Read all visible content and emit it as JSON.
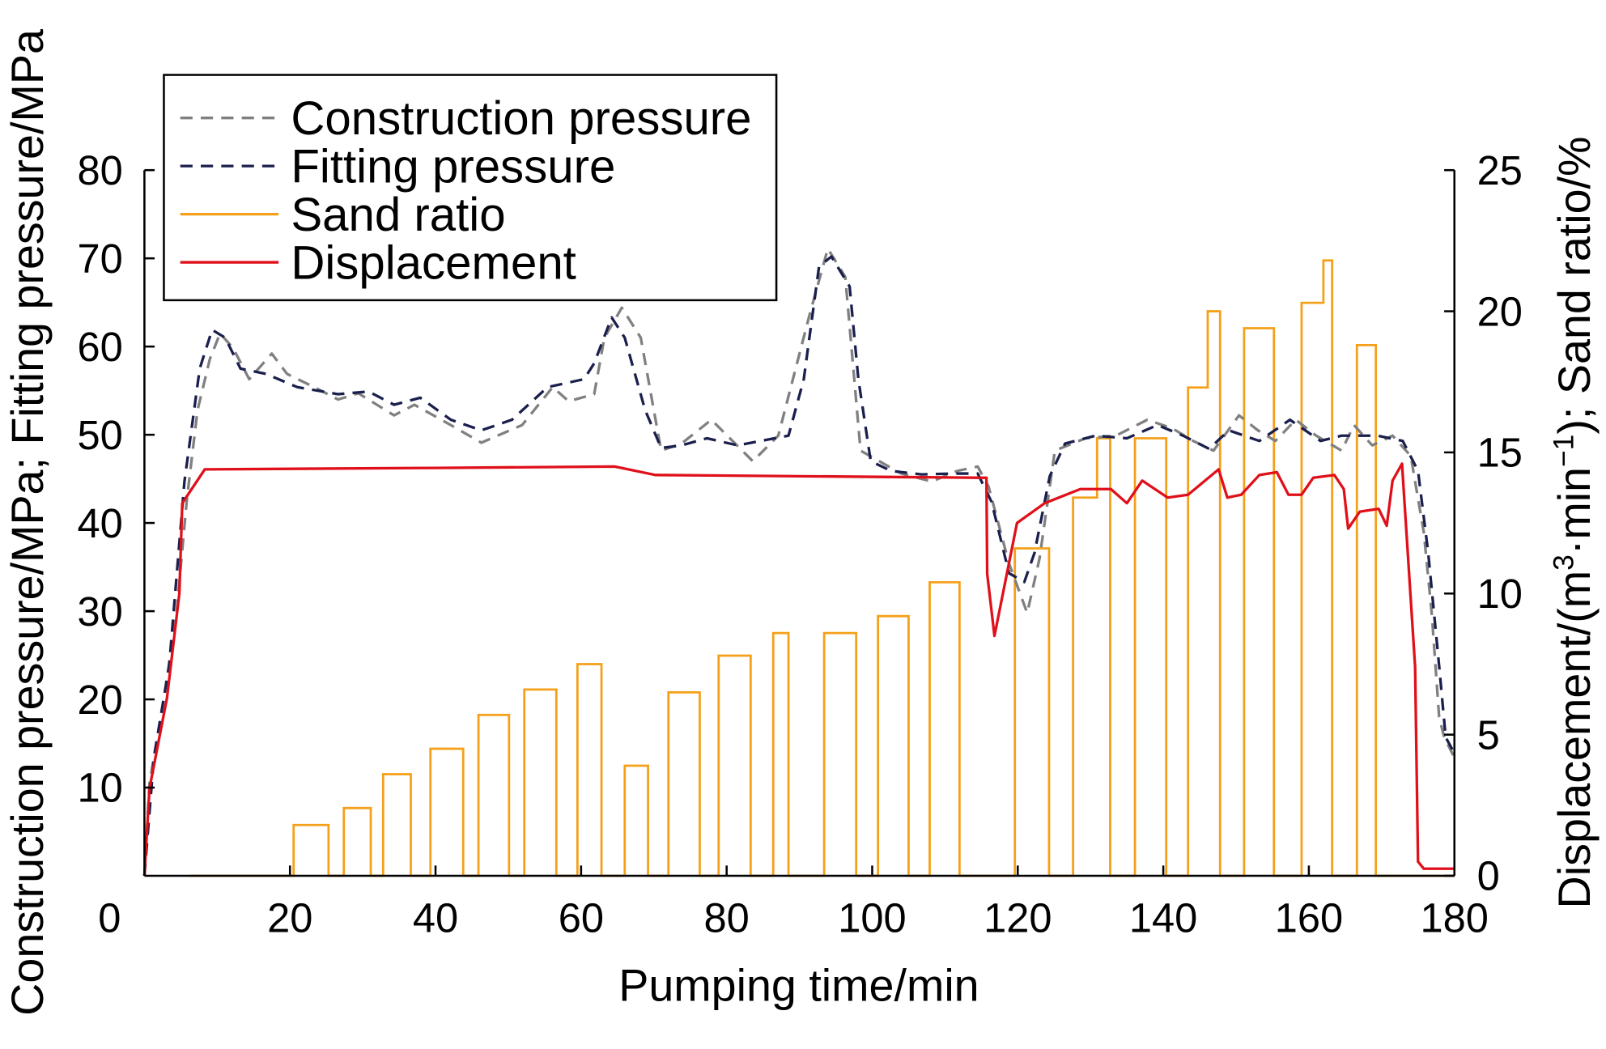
{
  "chart_data": {
    "type": "line",
    "title": "",
    "xlabel": "Pumping time/min",
    "ylabel": "Construction pressure/MPa; Fitting pressure/MPa",
    "y2label_parts": [
      "Displacement/(m",
      "3",
      "·min",
      "−1",
      "); Sand ratio/%"
    ],
    "xlim": [
      0,
      180
    ],
    "ylim": [
      0,
      80
    ],
    "y2lim": [
      0,
      25
    ],
    "x_ticks": [
      0,
      20,
      40,
      60,
      80,
      100,
      120,
      140,
      160,
      180
    ],
    "y_ticks": [
      10,
      20,
      30,
      40,
      50,
      60,
      70,
      80
    ],
    "y2_ticks": [
      0,
      5,
      10,
      15,
      20,
      25
    ],
    "grid": false,
    "legend_position": "top-left",
    "series": [
      {
        "name": "Construction pressure",
        "axis": "left",
        "color": "#808080",
        "style": "dashed",
        "points": [
          [
            0,
            0
          ],
          [
            0.7,
            10.5
          ],
          [
            2.7,
            20.3
          ],
          [
            4.4,
            29.6
          ],
          [
            5.8,
            42.4
          ],
          [
            7.3,
            52.8
          ],
          [
            9,
            58.6
          ],
          [
            10.4,
            61.5
          ],
          [
            12.2,
            59.8
          ],
          [
            14.4,
            56.3
          ],
          [
            17.5,
            59.2
          ],
          [
            19.6,
            56.9
          ],
          [
            23.8,
            55.2
          ],
          [
            26.6,
            54
          ],
          [
            29.4,
            54.7
          ],
          [
            34.3,
            52.2
          ],
          [
            37.1,
            53.4
          ],
          [
            42.1,
            51.1
          ],
          [
            46.3,
            49.1
          ],
          [
            51.9,
            51.1
          ],
          [
            56.1,
            55.4
          ],
          [
            58.3,
            53.8
          ],
          [
            61.8,
            54.6
          ],
          [
            63.2,
            61
          ],
          [
            65.6,
            64.4
          ],
          [
            68.2,
            61
          ],
          [
            71,
            48.2
          ],
          [
            73.8,
            49
          ],
          [
            77.9,
            51.7
          ],
          [
            83.6,
            47
          ],
          [
            87.1,
            49.9
          ],
          [
            91.3,
            63.3
          ],
          [
            93.9,
            71.1
          ],
          [
            96.3,
            67.9
          ],
          [
            98.4,
            48.2
          ],
          [
            104,
            45.6
          ],
          [
            108.2,
            44.7
          ],
          [
            111.7,
            45.9
          ],
          [
            114.5,
            46.4
          ],
          [
            116,
            44.1
          ],
          [
            118.8,
            35.4
          ],
          [
            121.3,
            29.8
          ],
          [
            123,
            36
          ],
          [
            125.1,
            48.2
          ],
          [
            129.3,
            49.6
          ],
          [
            133.5,
            49.9
          ],
          [
            137.8,
            51.7
          ],
          [
            141.3,
            50.7
          ],
          [
            144.1,
            49.3
          ],
          [
            146.9,
            48.2
          ],
          [
            150.4,
            52.2
          ],
          [
            153,
            50.5
          ],
          [
            155.4,
            49.3
          ],
          [
            158.2,
            51.7
          ],
          [
            161,
            49.9
          ],
          [
            164.5,
            48.2
          ],
          [
            166.2,
            51.1
          ],
          [
            168.7,
            48.8
          ],
          [
            171.5,
            49.9
          ],
          [
            174,
            47.6
          ],
          [
            175.8,
            38.9
          ],
          [
            176.9,
            29.6
          ],
          [
            177.9,
            18
          ],
          [
            178.6,
            15.7
          ],
          [
            180,
            13.4
          ]
        ]
      },
      {
        "name": "Fitting pressure",
        "axis": "left",
        "color": "#1a1f4d",
        "style": "dashed",
        "points": [
          [
            0,
            0
          ],
          [
            1.3,
            13.4
          ],
          [
            3.4,
            23.8
          ],
          [
            5.5,
            44.7
          ],
          [
            7.6,
            57.5
          ],
          [
            9.3,
            61.9
          ],
          [
            11.1,
            61
          ],
          [
            13.2,
            57.5
          ],
          [
            16.7,
            56.9
          ],
          [
            21,
            55.4
          ],
          [
            26.6,
            54.6
          ],
          [
            30.8,
            54.9
          ],
          [
            34.3,
            53.4
          ],
          [
            37.9,
            54.2
          ],
          [
            42.1,
            51.7
          ],
          [
            46.3,
            50.5
          ],
          [
            50.5,
            51.7
          ],
          [
            55.4,
            55.4
          ],
          [
            60.4,
            56.3
          ],
          [
            61.8,
            58.1
          ],
          [
            64.2,
            63.3
          ],
          [
            66,
            61
          ],
          [
            68.8,
            52.8
          ],
          [
            71,
            48.5
          ],
          [
            73.8,
            48.8
          ],
          [
            77.3,
            49.6
          ],
          [
            81.5,
            48.8
          ],
          [
            88.5,
            49.9
          ],
          [
            90.6,
            56.3
          ],
          [
            92.7,
            69.1
          ],
          [
            94.4,
            70.2
          ],
          [
            96.9,
            66.8
          ],
          [
            98.1,
            56.3
          ],
          [
            99.8,
            47
          ],
          [
            102.6,
            45.9
          ],
          [
            106.8,
            45.5
          ],
          [
            111,
            45.6
          ],
          [
            114.5,
            45.6
          ],
          [
            116.4,
            42.4
          ],
          [
            118.8,
            34.3
          ],
          [
            120.9,
            33.3
          ],
          [
            122.3,
            36.6
          ],
          [
            124.4,
            45.3
          ],
          [
            126.5,
            49
          ],
          [
            130.7,
            49.9
          ],
          [
            135,
            49.6
          ],
          [
            139.2,
            51.1
          ],
          [
            142.7,
            49.9
          ],
          [
            146.3,
            48.4
          ],
          [
            149,
            50.5
          ],
          [
            153.2,
            49.3
          ],
          [
            157.4,
            51.7
          ],
          [
            161.6,
            49.3
          ],
          [
            164.5,
            49.9
          ],
          [
            169.4,
            49.9
          ],
          [
            172.9,
            49.3
          ],
          [
            175,
            45.9
          ],
          [
            176.4,
            36.6
          ],
          [
            177.9,
            23.8
          ],
          [
            178.8,
            15.7
          ],
          [
            180,
            13.9
          ]
        ]
      },
      {
        "name": "Sand ratio",
        "axis": "right",
        "color": "#f5a01a",
        "style": "solid",
        "unit": "%",
        "bars": [
          [
            20.5,
            25.3,
            1.8
          ],
          [
            27.4,
            31.1,
            2.4
          ],
          [
            32.8,
            36.6,
            3.6
          ],
          [
            39.3,
            43.8,
            4.5
          ],
          [
            45.9,
            50.1,
            5.7
          ],
          [
            52.2,
            56.6,
            6.6
          ],
          [
            59.5,
            62.8,
            7.5
          ],
          [
            66,
            69.2,
            3.9
          ],
          [
            72,
            76.3,
            6.5
          ],
          [
            78.9,
            83.3,
            7.8
          ],
          [
            86.4,
            88.5,
            8.6
          ],
          [
            93.4,
            97.8,
            8.6
          ],
          [
            100.8,
            105,
            9.2
          ],
          [
            107.9,
            112,
            10.4
          ],
          [
            119.6,
            124.3,
            11.6
          ],
          [
            127.6,
            130.9,
            13.4
          ],
          [
            130.9,
            132.7,
            15.5
          ],
          [
            136.1,
            140.4,
            15.5
          ],
          [
            143.4,
            146.1,
            17.3
          ],
          [
            146.1,
            147.8,
            20.0
          ],
          [
            151.1,
            155.2,
            19.4
          ],
          [
            159,
            162,
            20.3
          ],
          [
            162,
            163.2,
            21.8
          ],
          [
            166.6,
            169.2,
            18.8
          ]
        ],
        "baseline_start": 6.2
      },
      {
        "name": "Displacement",
        "axis": "right",
        "color": "#e0101a",
        "style": "solid",
        "unit": "m3/min",
        "points": [
          [
            0,
            0
          ],
          [
            0.7,
            3.1
          ],
          [
            3.1,
            6.3
          ],
          [
            4.8,
            10
          ],
          [
            5.2,
            13.2
          ],
          [
            8.3,
            14.4
          ],
          [
            40,
            14.45
          ],
          [
            64.6,
            14.5
          ],
          [
            70.2,
            14.2
          ],
          [
            115.7,
            14.1
          ],
          [
            115.8,
            10.7
          ],
          [
            116.8,
            8.5
          ],
          [
            119.9,
            12.5
          ],
          [
            123.7,
            13.2
          ],
          [
            128.6,
            13.7
          ],
          [
            132.8,
            13.7
          ],
          [
            135,
            13.2
          ],
          [
            137.1,
            14
          ],
          [
            140.6,
            13.4
          ],
          [
            143.4,
            13.5
          ],
          [
            147.6,
            14.4
          ],
          [
            148.8,
            13.4
          ],
          [
            150.7,
            13.5
          ],
          [
            153.2,
            14.2
          ],
          [
            155.6,
            14.3
          ],
          [
            157.2,
            13.5
          ],
          [
            159,
            13.5
          ],
          [
            160.6,
            14.1
          ],
          [
            163.5,
            14.2
          ],
          [
            164.8,
            13.7
          ],
          [
            165.4,
            12.3
          ],
          [
            167,
            12.9
          ],
          [
            169.6,
            13
          ],
          [
            170.7,
            12.4
          ],
          [
            171.5,
            14
          ],
          [
            172.8,
            14.6
          ],
          [
            174.6,
            7.4
          ],
          [
            175,
            0.5
          ],
          [
            175.8,
            0.25
          ],
          [
            180,
            0.25
          ]
        ]
      }
    ]
  }
}
